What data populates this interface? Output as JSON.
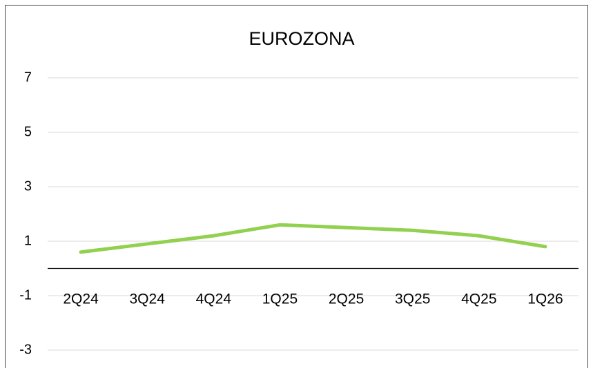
{
  "chart_data": {
    "type": "line",
    "title": "EUROZONA",
    "categories": [
      "2Q24",
      "3Q24",
      "4Q24",
      "1Q25",
      "2Q25",
      "3Q25",
      "4Q25",
      "1Q26"
    ],
    "series": [
      {
        "name": "EUROZONA",
        "color": "#92d050",
        "values": [
          0.6,
          0.9,
          1.2,
          1.6,
          1.5,
          1.4,
          1.2,
          0.8
        ]
      }
    ],
    "ylim": [
      -3,
      7
    ],
    "yticks": [
      -3,
      -1,
      1,
      3,
      5,
      7
    ],
    "grid": true
  }
}
